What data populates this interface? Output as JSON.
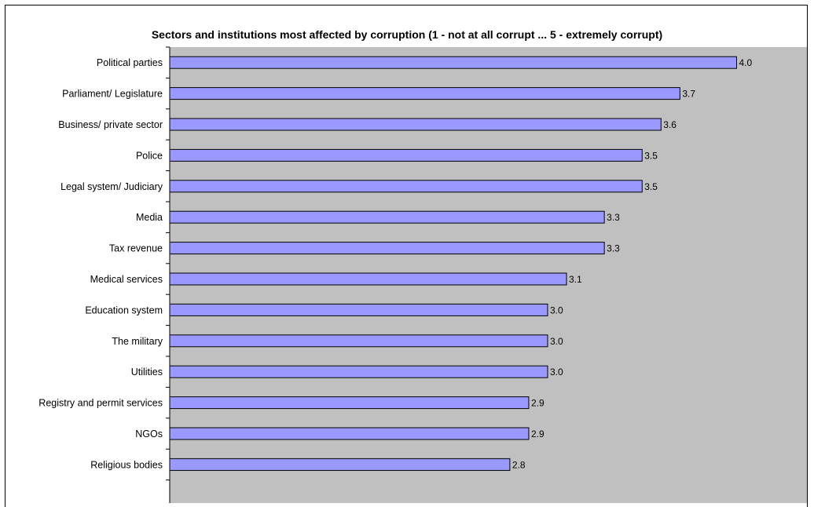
{
  "chart_data": {
    "type": "bar",
    "orientation": "horizontal",
    "title": "Sectors and institutions most affected by corruption (1 - not at all corrupt ... 5 - extremely corrupt)",
    "categories": [
      "Political parties",
      "Parliament/  Legislature",
      "Business/ private sector",
      "Police",
      "Legal system/ Judiciary",
      "Media",
      "Tax revenue",
      "Medical services",
      "Education system",
      "The military",
      "Utilities",
      "Registry and permit services",
      "NGOs",
      "Religious bodies"
    ],
    "values": [
      4.0,
      3.7,
      3.6,
      3.5,
      3.5,
      3.3,
      3.3,
      3.1,
      3.0,
      3.0,
      3.0,
      2.9,
      2.9,
      2.8
    ],
    "value_labels": [
      "4.0",
      "3.7",
      "3.6",
      "3.5",
      "3.5",
      "3.3",
      "3.3",
      "3.1",
      "3.0",
      "3.0",
      "3.0",
      "2.9",
      "2.9",
      "2.8"
    ],
    "xlim": [
      1,
      5
    ],
    "bar_color": "#9999ff",
    "plot_background": "#c0c0c0",
    "grid": false,
    "legend": "none"
  }
}
